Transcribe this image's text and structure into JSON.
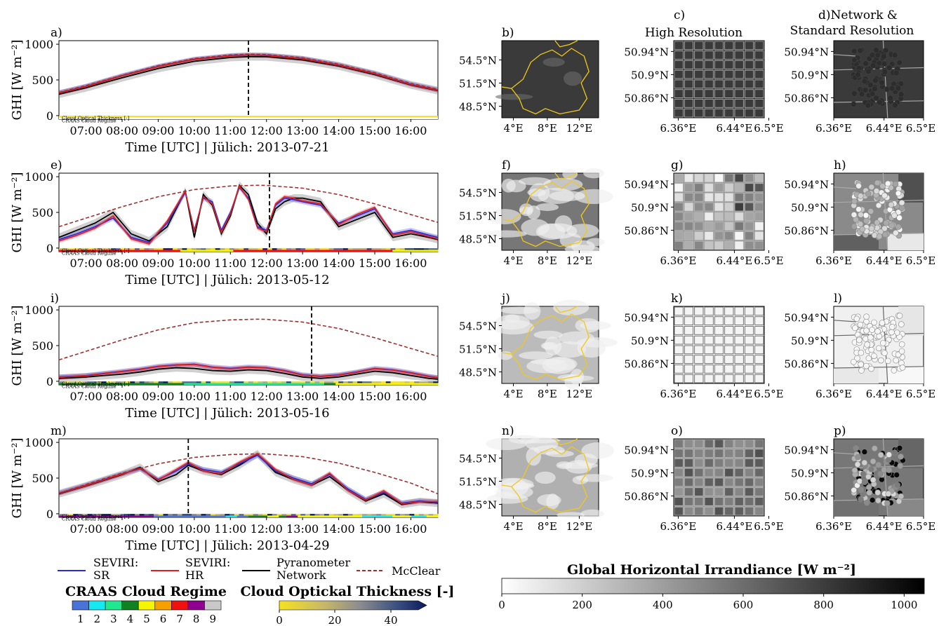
{
  "colors": {
    "seviri_sr": "#2a2ad8",
    "seviri_hr": "#e02020",
    "pyranometer": "#000000",
    "mcclear": "#a03030",
    "band_cot": "#f2e030",
    "regime": [
      "#4a73d9",
      "#14e8f0",
      "#20e890",
      "#108020",
      "#f5f500",
      "#f5a000",
      "#f01010",
      "#900090",
      "#c8c8c8"
    ]
  },
  "chart_data": [
    {
      "type": "line",
      "panel": "a)",
      "xlabel": "Time [UTC] | Jülich: 2013-07-21",
      "ylabel": "GHI [W m⁻²]",
      "ylim": [
        -50,
        1050
      ],
      "yticks": [
        "0",
        "500",
        "1000"
      ],
      "xticks": [
        "07:00",
        "08:00",
        "09:00",
        "10:00",
        "11:00",
        "12:00",
        "13:00",
        "14:00",
        "15:00",
        "16:00"
      ],
      "vline": "11:30",
      "band_labels": [
        "Cloud Optical Thickness [-]",
        "CRAAS Cloud Regime"
      ],
      "series": [
        {
          "name": "SEVIRI: SR",
          "x": [
            "06:15",
            "07:00",
            "08:00",
            "09:00",
            "10:00",
            "11:00",
            "11:30",
            "12:00",
            "13:00",
            "14:00",
            "15:00",
            "16:00",
            "16:45"
          ],
          "values": [
            320,
            410,
            560,
            690,
            790,
            840,
            850,
            845,
            800,
            710,
            590,
            440,
            360
          ]
        },
        {
          "name": "SEVIRI: HR",
          "x": [
            "06:15",
            "07:00",
            "08:00",
            "09:00",
            "10:00",
            "11:00",
            "11:30",
            "12:00",
            "13:00",
            "14:00",
            "15:00",
            "16:00",
            "16:45"
          ],
          "values": [
            315,
            405,
            555,
            685,
            785,
            835,
            845,
            840,
            795,
            705,
            585,
            435,
            355
          ]
        },
        {
          "name": "Pyranometer Network",
          "x": [
            "06:15",
            "07:00",
            "08:00",
            "09:00",
            "10:00",
            "11:00",
            "11:30",
            "12:00",
            "13:00",
            "14:00",
            "15:00",
            "16:00",
            "16:45"
          ],
          "values": [
            300,
            390,
            530,
            660,
            760,
            815,
            825,
            825,
            780,
            695,
            575,
            430,
            350
          ]
        },
        {
          "name": "McClear",
          "x": [
            "06:15",
            "07:00",
            "08:00",
            "09:00",
            "10:00",
            "11:00",
            "11:30",
            "12:00",
            "13:00",
            "14:00",
            "15:00",
            "16:00",
            "16:45"
          ],
          "values": [
            325,
            420,
            565,
            700,
            800,
            850,
            860,
            855,
            810,
            720,
            600,
            450,
            370
          ]
        }
      ]
    },
    {
      "type": "line",
      "panel": "e)",
      "xlabel": "Time [UTC] | Jülich: 2013-05-12",
      "ylabel": "GHI [W m⁻²]",
      "ylim": [
        -50,
        1050
      ],
      "yticks": [
        "0",
        "500",
        "1000"
      ],
      "xticks": [
        "07:00",
        "08:00",
        "09:00",
        "10:00",
        "11:00",
        "12:00",
        "13:00",
        "14:00",
        "15:00",
        "16:00"
      ],
      "vline": "12:05",
      "band_labels": [
        "Cloud Optical Thickness [-]",
        "CRAAS Cloud Regime"
      ],
      "series": [
        {
          "name": "SEVIRI: SR",
          "x": [
            "06:15",
            "06:45",
            "07:15",
            "07:45",
            "08:15",
            "08:45",
            "09:15",
            "09:45",
            "10:00",
            "10:15",
            "10:30",
            "10:45",
            "11:00",
            "11:15",
            "11:30",
            "11:45",
            "12:00",
            "12:15",
            "12:30",
            "12:45",
            "13:00",
            "13:30",
            "14:00",
            "14:30",
            "15:00",
            "15:30",
            "16:00",
            "16:30",
            "16:45"
          ],
          "values": [
            120,
            200,
            300,
            420,
            150,
            80,
            350,
            780,
            250,
            700,
            650,
            250,
            500,
            850,
            700,
            300,
            250,
            600,
            700,
            680,
            650,
            600,
            350,
            450,
            550,
            200,
            250,
            180,
            150
          ]
        },
        {
          "name": "SEVIRI: HR",
          "x": [
            "06:15",
            "06:45",
            "07:15",
            "07:45",
            "08:15",
            "08:45",
            "09:15",
            "09:45",
            "10:00",
            "10:15",
            "10:30",
            "10:45",
            "11:00",
            "11:15",
            "11:30",
            "11:45",
            "12:00",
            "12:15",
            "12:30",
            "12:45",
            "13:00",
            "13:30",
            "14:00",
            "14:30",
            "15:00",
            "15:30",
            "16:00",
            "16:30",
            "16:45"
          ],
          "values": [
            100,
            180,
            280,
            450,
            130,
            60,
            380,
            800,
            230,
            720,
            620,
            220,
            480,
            870,
            680,
            280,
            230,
            620,
            720,
            700,
            660,
            620,
            330,
            470,
            570,
            180,
            230,
            160,
            130
          ]
        },
        {
          "name": "Pyranometer Network",
          "x": [
            "06:15",
            "06:45",
            "07:15",
            "07:45",
            "08:15",
            "08:45",
            "09:15",
            "09:45",
            "10:00",
            "10:15",
            "10:30",
            "10:45",
            "11:00",
            "11:15",
            "11:30",
            "11:45",
            "12:00",
            "12:15",
            "12:30",
            "12:45",
            "13:00",
            "13:30",
            "14:00",
            "14:30",
            "15:00",
            "15:30",
            "16:00",
            "16:30",
            "16:45"
          ],
          "values": [
            150,
            250,
            350,
            500,
            200,
            100,
            300,
            800,
            150,
            750,
            600,
            200,
            450,
            880,
            750,
            350,
            200,
            550,
            650,
            700,
            700,
            650,
            300,
            400,
            500,
            150,
            200,
            150,
            120
          ]
        },
        {
          "name": "McClear",
          "x": [
            "06:15",
            "07:00",
            "08:00",
            "09:00",
            "10:00",
            "11:00",
            "11:45",
            "12:00",
            "13:00",
            "14:00",
            "15:00",
            "16:00",
            "16:45"
          ],
          "values": [
            300,
            420,
            580,
            720,
            820,
            870,
            880,
            878,
            840,
            750,
            620,
            470,
            360
          ]
        }
      ]
    },
    {
      "type": "line",
      "panel": "i)",
      "xlabel": "Time [UTC] | Jülich: 2013-05-16",
      "ylabel": "GHI [W m⁻²]",
      "ylim": [
        -50,
        1050
      ],
      "yticks": [
        "0",
        "500",
        "1000"
      ],
      "xticks": [
        "07:00",
        "08:00",
        "09:00",
        "10:00",
        "11:00",
        "12:00",
        "13:00",
        "14:00",
        "15:00",
        "16:00"
      ],
      "vline": "13:15",
      "band_labels": [
        "Cloud Optical Thickness [-]",
        "CRAAS Cloud Regime"
      ],
      "series": [
        {
          "name": "SEVIRI: SR",
          "x": [
            "06:15",
            "07:00",
            "07:30",
            "08:00",
            "08:30",
            "09:00",
            "09:30",
            "10:00",
            "10:30",
            "11:00",
            "11:30",
            "12:00",
            "12:30",
            "13:00",
            "13:30",
            "14:00",
            "14:30",
            "15:00",
            "15:30",
            "16:00",
            "16:30",
            "16:45"
          ],
          "values": [
            60,
            80,
            110,
            140,
            170,
            210,
            230,
            240,
            200,
            180,
            200,
            190,
            150,
            90,
            70,
            90,
            130,
            180,
            160,
            120,
            70,
            50
          ]
        },
        {
          "name": "SEVIRI: HR",
          "x": [
            "06:15",
            "07:00",
            "07:30",
            "08:00",
            "08:30",
            "09:00",
            "09:30",
            "10:00",
            "10:30",
            "11:00",
            "11:30",
            "12:00",
            "12:30",
            "13:00",
            "13:30",
            "14:00",
            "14:30",
            "15:00",
            "15:30",
            "16:00",
            "16:30",
            "16:45"
          ],
          "values": [
            55,
            75,
            105,
            135,
            165,
            205,
            225,
            235,
            195,
            175,
            195,
            185,
            145,
            85,
            65,
            85,
            125,
            175,
            155,
            115,
            65,
            45
          ]
        },
        {
          "name": "Pyranometer Network",
          "x": [
            "06:15",
            "07:00",
            "07:30",
            "08:00",
            "08:30",
            "09:00",
            "09:30",
            "10:00",
            "10:30",
            "11:00",
            "11:30",
            "12:00",
            "12:30",
            "13:00",
            "13:30",
            "14:00",
            "14:30",
            "15:00",
            "15:30",
            "16:00",
            "16:30",
            "16:45"
          ],
          "values": [
            40,
            60,
            80,
            100,
            130,
            170,
            190,
            180,
            150,
            140,
            160,
            150,
            110,
            60,
            40,
            60,
            100,
            140,
            120,
            80,
            40,
            30
          ]
        },
        {
          "name": "McClear",
          "x": [
            "06:15",
            "07:00",
            "08:00",
            "09:00",
            "10:00",
            "11:00",
            "11:45",
            "12:00",
            "13:00",
            "14:00",
            "15:00",
            "16:00",
            "16:45"
          ],
          "values": [
            300,
            420,
            580,
            720,
            820,
            860,
            870,
            868,
            830,
            740,
            610,
            460,
            350
          ]
        }
      ]
    },
    {
      "type": "line",
      "panel": "m)",
      "xlabel": "Time [UTC] | Jülich: 2013-04-29",
      "ylabel": "GHI [W m⁻²]",
      "ylim": [
        -50,
        1050
      ],
      "yticks": [
        "0",
        "500",
        "1000"
      ],
      "xticks": [
        "07:00",
        "08:00",
        "09:00",
        "10:00",
        "11:00",
        "12:00",
        "13:00",
        "14:00",
        "15:00",
        "16:00"
      ],
      "vline": "09:50",
      "band_labels": [
        "Cloud Optical Thickness [-]",
        "CRAAS Cloud Regime"
      ],
      "series": [
        {
          "name": "SEVIRI: SR",
          "x": [
            "06:15",
            "07:00",
            "08:00",
            "08:30",
            "09:00",
            "09:30",
            "09:50",
            "10:15",
            "10:45",
            "11:15",
            "11:45",
            "12:15",
            "12:45",
            "13:15",
            "13:45",
            "14:15",
            "14:45",
            "15:15",
            "15:45",
            "16:15",
            "16:45"
          ],
          "values": [
            290,
            400,
            560,
            630,
            480,
            600,
            700,
            620,
            580,
            700,
            820,
            600,
            500,
            420,
            550,
            350,
            200,
            300,
            150,
            180,
            160
          ]
        },
        {
          "name": "SEVIRI: HR",
          "x": [
            "06:15",
            "07:00",
            "08:00",
            "08:30",
            "09:00",
            "09:30",
            "09:50",
            "10:15",
            "10:45",
            "11:15",
            "11:45",
            "12:15",
            "12:45",
            "13:15",
            "13:45",
            "14:15",
            "14:45",
            "15:15",
            "15:45",
            "16:15",
            "16:45"
          ],
          "values": [
            285,
            395,
            555,
            640,
            470,
            620,
            720,
            600,
            560,
            720,
            840,
            620,
            480,
            400,
            570,
            330,
            190,
            320,
            140,
            170,
            170
          ]
        },
        {
          "name": "Pyranometer Network",
          "x": [
            "06:15",
            "07:00",
            "08:00",
            "08:30",
            "09:00",
            "09:30",
            "09:50",
            "10:15",
            "10:45",
            "11:15",
            "11:45",
            "12:15",
            "12:45",
            "13:15",
            "13:45",
            "14:15",
            "14:45",
            "15:15",
            "15:45",
            "16:15",
            "16:45"
          ],
          "values": [
            280,
            390,
            550,
            650,
            450,
            550,
            680,
            600,
            550,
            680,
            840,
            580,
            480,
            400,
            520,
            330,
            180,
            280,
            130,
            170,
            150
          ]
        },
        {
          "name": "McClear",
          "x": [
            "06:15",
            "07:00",
            "08:00",
            "09:00",
            "10:00",
            "11:00",
            "11:45",
            "12:00",
            "13:00",
            "14:00",
            "15:00",
            "16:00",
            "16:45"
          ],
          "values": [
            290,
            410,
            570,
            700,
            790,
            830,
            840,
            838,
            800,
            710,
            580,
            430,
            280
          ]
        }
      ]
    }
  ],
  "maps": {
    "col_b_lat": [
      "54.5°N",
      "51.5°N",
      "48.5°N"
    ],
    "col_b_lon": [
      "4°E",
      "8°E",
      "12°E"
    ],
    "col_c_lat": [
      "50.94°N",
      "50.9°N",
      "50.86°N"
    ],
    "col_c_lon": [
      "6.36°E",
      "6.44°E",
      "6.5°E"
    ],
    "rows": [
      {
        "b": "b)",
        "c": "c)",
        "c_title": "High Resolution",
        "d": "d)Network &",
        "d_title": "Standard Resolution"
      },
      {
        "b": "f)",
        "c": "g)",
        "d": "h)"
      },
      {
        "b": "j)",
        "c": "k)",
        "d": "l)"
      },
      {
        "b": "n)",
        "c": "o)",
        "d": "p)"
      }
    ]
  },
  "legend": {
    "sr": [
      "SEVIRI:",
      "SR"
    ],
    "hr": [
      "SEVIRI:",
      "HR"
    ],
    "pyr": [
      "Pyranometer",
      "Network"
    ],
    "mcclear": "McClear"
  },
  "colorbars": {
    "regime_title": "CRAAS Cloud Regime",
    "regime_ticks": [
      "1",
      "2",
      "3",
      "4",
      "5",
      "6",
      "7",
      "8",
      "9"
    ],
    "cot_title": "Cloud Optickal Thickness [-]",
    "cot_ticks": [
      "0",
      "20",
      "40"
    ],
    "ghi_title": "Global Horizontal Irrandiance [W m⁻²]",
    "ghi_ticks": [
      "0",
      "200",
      "400",
      "600",
      "800",
      "1000"
    ]
  }
}
